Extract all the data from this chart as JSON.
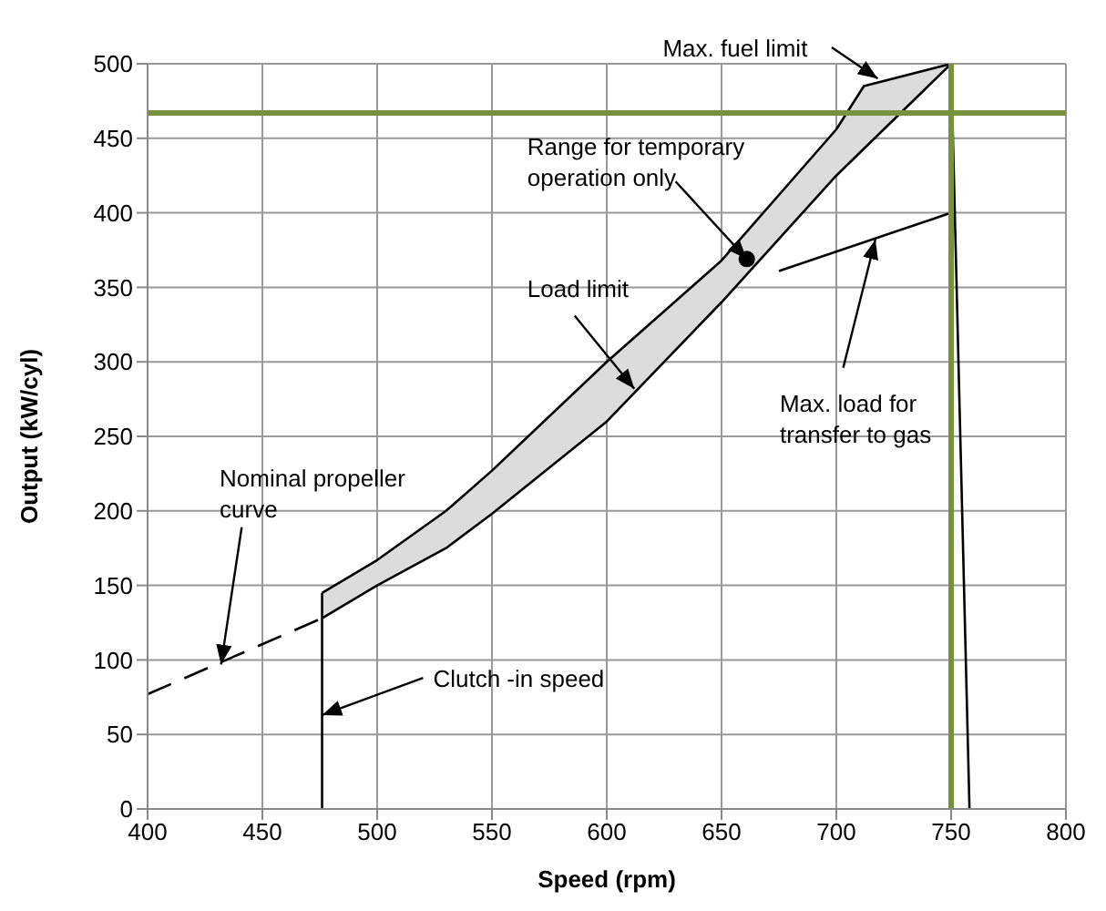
{
  "chart_data": {
    "type": "line",
    "xlabel": "Speed (rpm)",
    "ylabel": "Output (kW/cyl)",
    "xlim": [
      400,
      800
    ],
    "xticks": [
      400,
      450,
      500,
      550,
      600,
      650,
      700,
      750,
      800
    ],
    "ylim": [
      0,
      500
    ],
    "yticks": [
      0,
      50,
      100,
      150,
      200,
      250,
      300,
      350,
      400,
      450,
      500
    ],
    "grid": true,
    "legend": false,
    "marker": "none",
    "series": [
      {
        "color": "#000000",
        "x": [
          476,
          500,
          530,
          550,
          600,
          650,
          700,
          712,
          750
        ],
        "values": [
          145,
          167,
          200,
          227,
          300,
          368,
          456,
          485,
          500
        ],
        "lower": [
          128,
          150,
          175,
          198,
          260,
          340,
          425,
          443,
          500
        ],
        "upper": [
          145,
          167,
          200,
          227,
          300,
          368,
          456,
          485,
          500
        ]
      },
      {
        "color": "#000000",
        "x": [
          476,
          500,
          530,
          550,
          600,
          650,
          700,
          712,
          750
        ],
        "values": [
          128,
          150,
          175,
          198,
          260,
          340,
          425,
          443,
          500
        ]
      },
      {
        "color": "#000000",
        "line_style": "dashed",
        "x": [
          400,
          476
        ],
        "values": [
          77,
          128
        ]
      },
      {
        "color": "#000000",
        "x": [
          476,
          476
        ],
        "values": [
          0,
          145
        ]
      },
      {
        "color": "#000000",
        "x": [
          750,
          758
        ],
        "values": [
          500,
          0
        ]
      },
      {
        "color": "#000000",
        "x": [
          675,
          750
        ],
        "values": [
          361,
          400
        ]
      },
      {
        "type": "scatter",
        "color": "#000000",
        "marker": "circle",
        "x": [
          661
        ],
        "values": [
          369
        ]
      }
    ],
    "ref_lines": [
      {
        "axis": "y",
        "value": 467,
        "color": "#76923c"
      },
      {
        "axis": "x",
        "value": 750,
        "color": "#76923c"
      }
    ],
    "annotations": [
      {
        "text": "Max. fuel limit",
        "x": 718,
        "y": 490
      },
      {
        "text": "Range for temporary operation only",
        "x": 661,
        "y": 369
      },
      {
        "text": "Load limit",
        "x": 612,
        "y": 282
      },
      {
        "text": "Max. load for transfer to gas",
        "x": 717,
        "y": 382
      },
      {
        "text": "Nominal propeller curve",
        "x": 432,
        "y": 97
      },
      {
        "text": "Clutch -in speed",
        "x": 476,
        "y": 63
      }
    ]
  }
}
